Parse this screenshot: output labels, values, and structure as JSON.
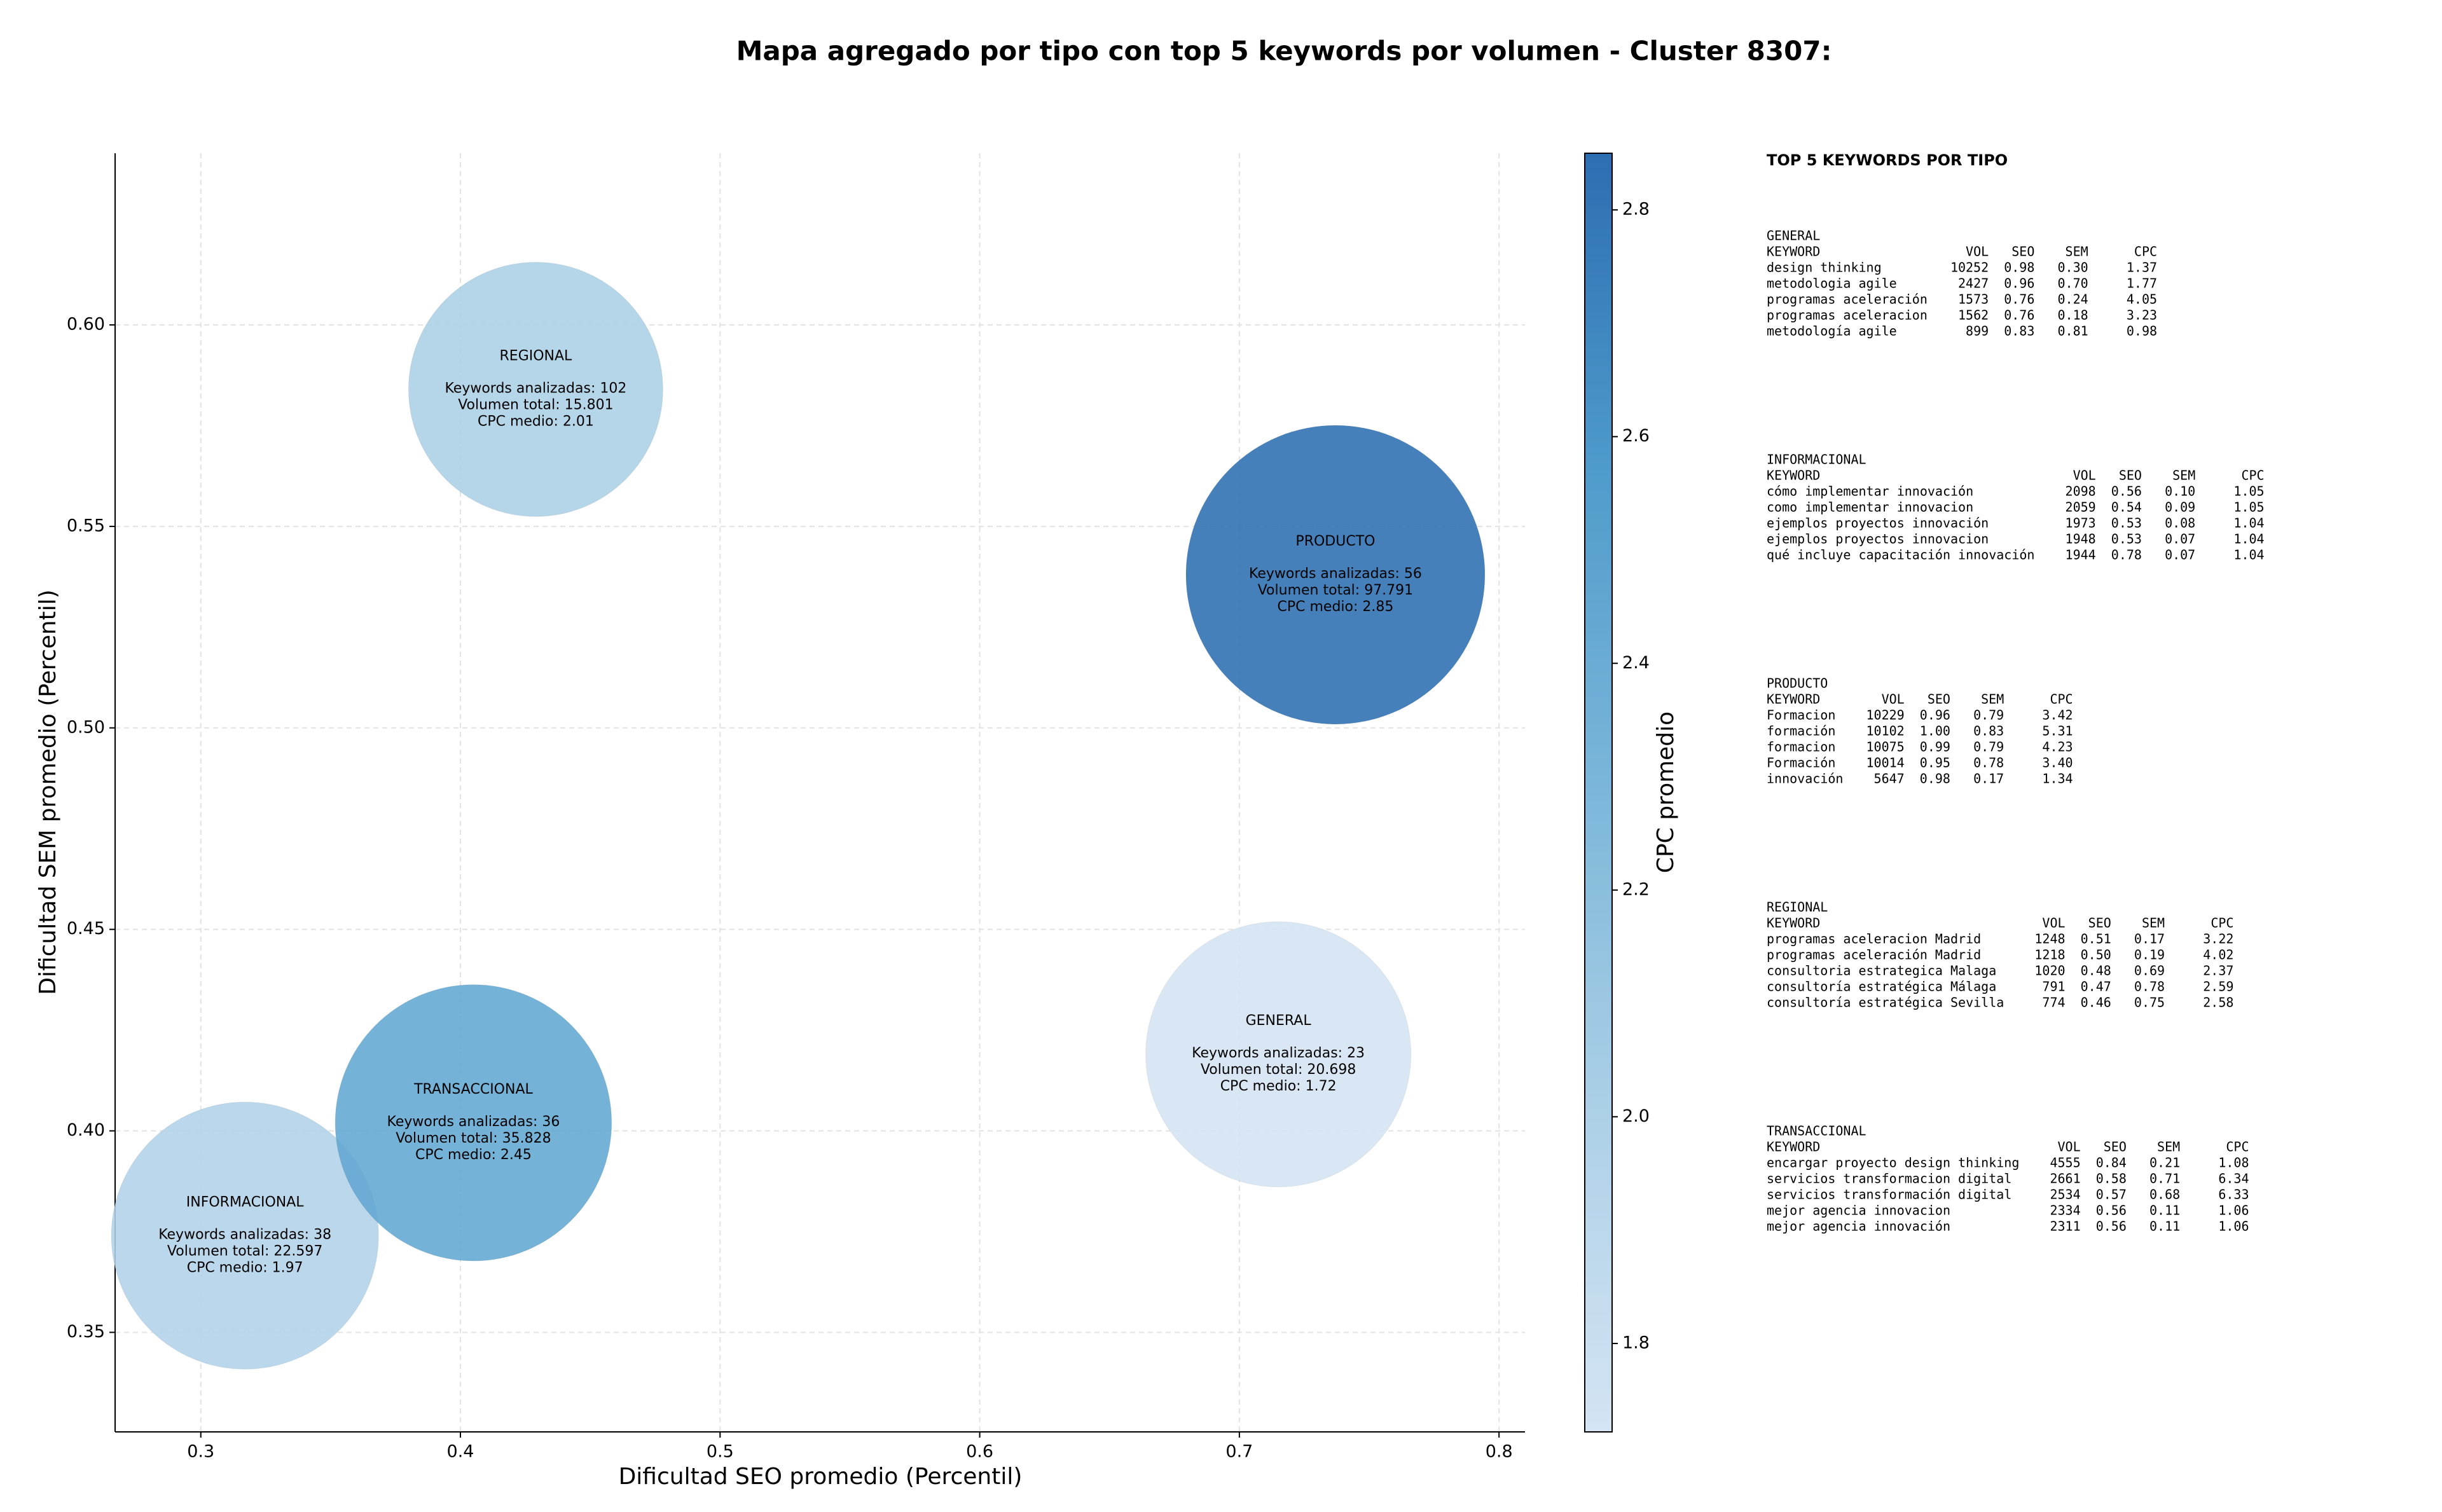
{
  "chart_data": {
    "type": "bubble",
    "title": "Mapa agregado por tipo con top 5 keywords por volumen - Cluster 8307:",
    "x_label": "Dificultad SEO promedio (Percentil)",
    "y_label": "Dificultad SEM promedio (Percentil)",
    "colorbar_label": "CPC promedio",
    "xlim": [
      0.267,
      0.81
    ],
    "xticks": [
      0.3,
      0.4,
      0.5,
      0.6,
      0.7,
      0.8
    ],
    "ylim": [
      0.3253,
      0.6426
    ],
    "yticks": [
      0.35,
      {
        "value": 0.4,
        "label": "0.40"
      },
      0.45,
      {
        "value": 0.5,
        "label": "0.50"
      },
      0.55,
      {
        "value": 0.6,
        "label": "0.60"
      }
    ],
    "clim": [
      1.722,
      2.85
    ],
    "cticks": [
      1.8,
      {
        "value": 2.0,
        "label": "2.0"
      },
      2.2,
      2.4,
      2.6,
      2.8
    ],
    "grid": true,
    "points": [
      {
        "name": "GENERAL",
        "x": 0.715,
        "y": 0.419,
        "size": 20698,
        "cpc": 1.72,
        "labels": [
          "Keywords analizadas: 23",
          "Volumen total: 20.698",
          "CPC medio: 1.72"
        ]
      },
      {
        "name": "INFORMACIONAL",
        "x": 0.317,
        "y": 0.374,
        "size": 22597,
        "cpc": 1.97,
        "labels": [
          "Keywords analizadas: 38",
          "Volumen total: 22.597",
          "CPC medio: 1.97"
        ]
      },
      {
        "name": "PRODUCTO",
        "x": 0.737,
        "y": 0.538,
        "size": 97791,
        "cpc": 2.85,
        "labels": [
          "Keywords analizadas: 56",
          "Volumen total: 97.791",
          "CPC medio: 2.85"
        ]
      },
      {
        "name": "REGIONAL",
        "x": 0.429,
        "y": 0.584,
        "size": 15801,
        "cpc": 2.01,
        "labels": [
          "Keywords analizadas: 102",
          "Volumen total: 15.801",
          "CPC medio: 2.01"
        ]
      },
      {
        "name": "TRANSACCIONAL",
        "x": 0.405,
        "y": 0.402,
        "size": 35828,
        "cpc": 2.45,
        "labels": [
          "Keywords analizadas: 36",
          "Volumen total: 35.828",
          "CPC medio: 2.45"
        ]
      }
    ]
  },
  "top_keywords": {
    "title": "TOP 5 KEYWORDS POR TIPO",
    "columns": [
      "KEYWORD",
      "VOL",
      "SEO",
      "SEM",
      "CPC"
    ],
    "sections": [
      {
        "title": "GENERAL",
        "rows": [
          [
            "design thinking",
            "10252",
            "0.98",
            "0.30",
            "1.37"
          ],
          [
            "metodologia agile",
            "2427",
            "0.96",
            "0.70",
            "1.77"
          ],
          [
            "programas aceleración",
            "1573",
            "0.76",
            "0.24",
            "4.05"
          ],
          [
            "programas aceleracion",
            "1562",
            "0.76",
            "0.18",
            "3.23"
          ],
          [
            "metodología agile",
            "899",
            "0.83",
            "0.81",
            "0.98"
          ]
        ]
      },
      {
        "title": "INFORMACIONAL",
        "rows": [
          [
            "cómo implementar innovación",
            "2098",
            "0.56",
            "0.10",
            "1.05"
          ],
          [
            "como implementar innovacion",
            "2059",
            "0.54",
            "0.09",
            "1.05"
          ],
          [
            "ejemplos proyectos innovación",
            "1973",
            "0.53",
            "0.08",
            "1.04"
          ],
          [
            "ejemplos proyectos innovacion",
            "1948",
            "0.53",
            "0.07",
            "1.04"
          ],
          [
            "qué incluye capacitación innovación",
            "1944",
            "0.78",
            "0.07",
            "1.04"
          ]
        ]
      },
      {
        "title": "PRODUCTO",
        "rows": [
          [
            "Formacion",
            "10229",
            "0.96",
            "0.79",
            "3.42"
          ],
          [
            "formación",
            "10102",
            "1.00",
            "0.83",
            "5.31"
          ],
          [
            "formacion",
            "10075",
            "0.99",
            "0.79",
            "4.23"
          ],
          [
            "Formación",
            "10014",
            "0.95",
            "0.78",
            "3.40"
          ],
          [
            "innovación",
            "5647",
            "0.98",
            "0.17",
            "1.34"
          ]
        ]
      },
      {
        "title": "REGIONAL",
        "rows": [
          [
            "programas aceleracion Madrid",
            "1248",
            "0.51",
            "0.17",
            "3.22"
          ],
          [
            "programas aceleración Madrid",
            "1218",
            "0.50",
            "0.19",
            "4.02"
          ],
          [
            "consultoria estrategica Malaga",
            "1020",
            "0.48",
            "0.69",
            "2.37"
          ],
          [
            "consultoría estratégica Málaga",
            "791",
            "0.47",
            "0.78",
            "2.59"
          ],
          [
            "consultoría estratégica Sevilla",
            "774",
            "0.46",
            "0.75",
            "2.58"
          ]
        ]
      },
      {
        "title": "TRANSACCIONAL",
        "rows": [
          [
            "encargar proyecto design thinking",
            "4555",
            "0.84",
            "0.21",
            "1.08"
          ],
          [
            "servicios transformacion digital",
            "2661",
            "0.58",
            "0.71",
            "6.34"
          ],
          [
            "servicios transformación digital",
            "2534",
            "0.57",
            "0.68",
            "6.33"
          ],
          [
            "mejor agencia innovacion",
            "2334",
            "0.56",
            "0.11",
            "1.06"
          ],
          [
            "mejor agencia innovación",
            "2311",
            "0.56",
            "0.11",
            "1.06"
          ]
        ]
      }
    ]
  }
}
